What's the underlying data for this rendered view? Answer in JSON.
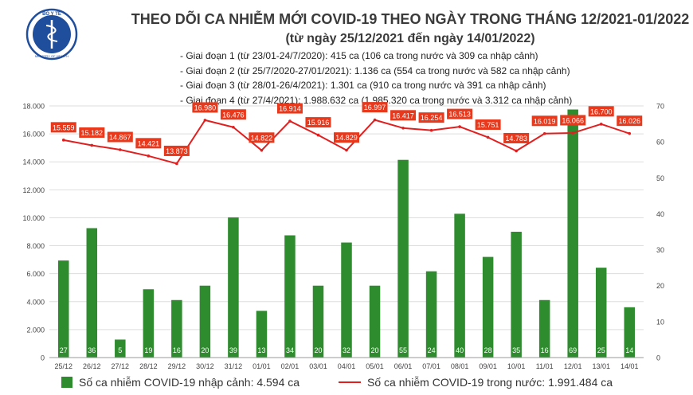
{
  "header": {
    "title": "THEO DÕI CA NHIỄM MỚI COVID-19 THEO NGÀY TRONG THÁNG 12/2021-01/2022",
    "subtitle": "(từ ngày 25/12/2021 đến ngày 14/01/2022)",
    "logo_text": "BỘ Y TẾ",
    "logo_subtext": "MINISTRY OF HEALTH",
    "notes": [
      "- Giai đoạn 1 (từ 23/01-24/7/2020): 415 ca (106 ca trong nước và 309 ca nhập cảnh)",
      "- Giai đoạn 2 (từ 25/7/2020-27/01/2021): 1.136 ca (554 ca trong nước và 582 ca nhập cảnh)",
      "- Giai đoạn 3 (từ 28/01-26/4/2021): 1.301 ca (910 ca trong nước và 391 ca nhập cảnh)",
      "- Giai đoạn 4 (từ 27/4/2021): 1.988.632 ca (1.985.320 ca trong nước và 3.312 ca nhập cảnh)"
    ]
  },
  "legend": {
    "bar_label": "Số ca nhiễm COVID-19 nhập cảnh: 4.594 ca",
    "line_label": "Số ca nhiễm COVID-19 trong nước: 1.991.484 ca"
  },
  "colors": {
    "bar": "#2e8b2e",
    "line": "#e02020",
    "label_bg": "#e8391d",
    "grid": "#dddddd"
  },
  "chart_data": {
    "type": "bar+line",
    "categories": [
      "25/12",
      "26/12",
      "27/12",
      "28/12",
      "29/12",
      "30/12",
      "31/12",
      "01/01",
      "02/01",
      "03/01",
      "04/01",
      "05/01",
      "06/01",
      "07/01",
      "08/01",
      "09/01",
      "10/01",
      "11/01",
      "12/01",
      "13/01",
      "14/01"
    ],
    "left_axis": {
      "min": 0,
      "max": 18000,
      "step": 2000,
      "tick_labels": [
        "0",
        "2.000",
        "4.000",
        "6.000",
        "8.000",
        "10.000",
        "12.000",
        "14.000",
        "16.000",
        "18.000"
      ]
    },
    "right_axis": {
      "min": 0,
      "max": 70,
      "step": 10,
      "tick_labels": [
        "0",
        "10",
        "20",
        "30",
        "40",
        "50",
        "60",
        "70"
      ]
    },
    "series": [
      {
        "name": "Số ca nhiễm COVID-19 nhập cảnh",
        "type": "bar",
        "axis": "right",
        "values": [
          27,
          36,
          5,
          19,
          16,
          20,
          39,
          13,
          34,
          20,
          32,
          20,
          55,
          24,
          40,
          28,
          35,
          16,
          69,
          25,
          14
        ],
        "labels": [
          "27",
          "36",
          "5",
          "19",
          "16",
          "20",
          "39",
          "13",
          "34",
          "20",
          "32",
          "20",
          "55",
          "24",
          "40",
          "28",
          "35",
          "16",
          "69",
          "25",
          "14"
        ]
      },
      {
        "name": "Số ca nhiễm COVID-19 trong nước",
        "type": "line",
        "axis": "left",
        "values": [
          15559,
          15182,
          14867,
          14421,
          13873,
          16980,
          16476,
          14822,
          16914,
          15916,
          14829,
          16997,
          16417,
          16254,
          16513,
          15751,
          14783,
          16019,
          16066,
          16700,
          16026
        ],
        "labels": [
          "15.559",
          "15.182",
          "14.867",
          "14.421",
          "13.873",
          "16.980",
          "16.476",
          "14.822",
          "16.914",
          "15.916",
          "14.829",
          "16.997",
          "16.417",
          "16.254",
          "16.513",
          "15.751",
          "14.783",
          "16.019",
          "16.066",
          "16.700",
          "16.026"
        ]
      }
    ],
    "grid": true,
    "legend_position": "bottom"
  }
}
